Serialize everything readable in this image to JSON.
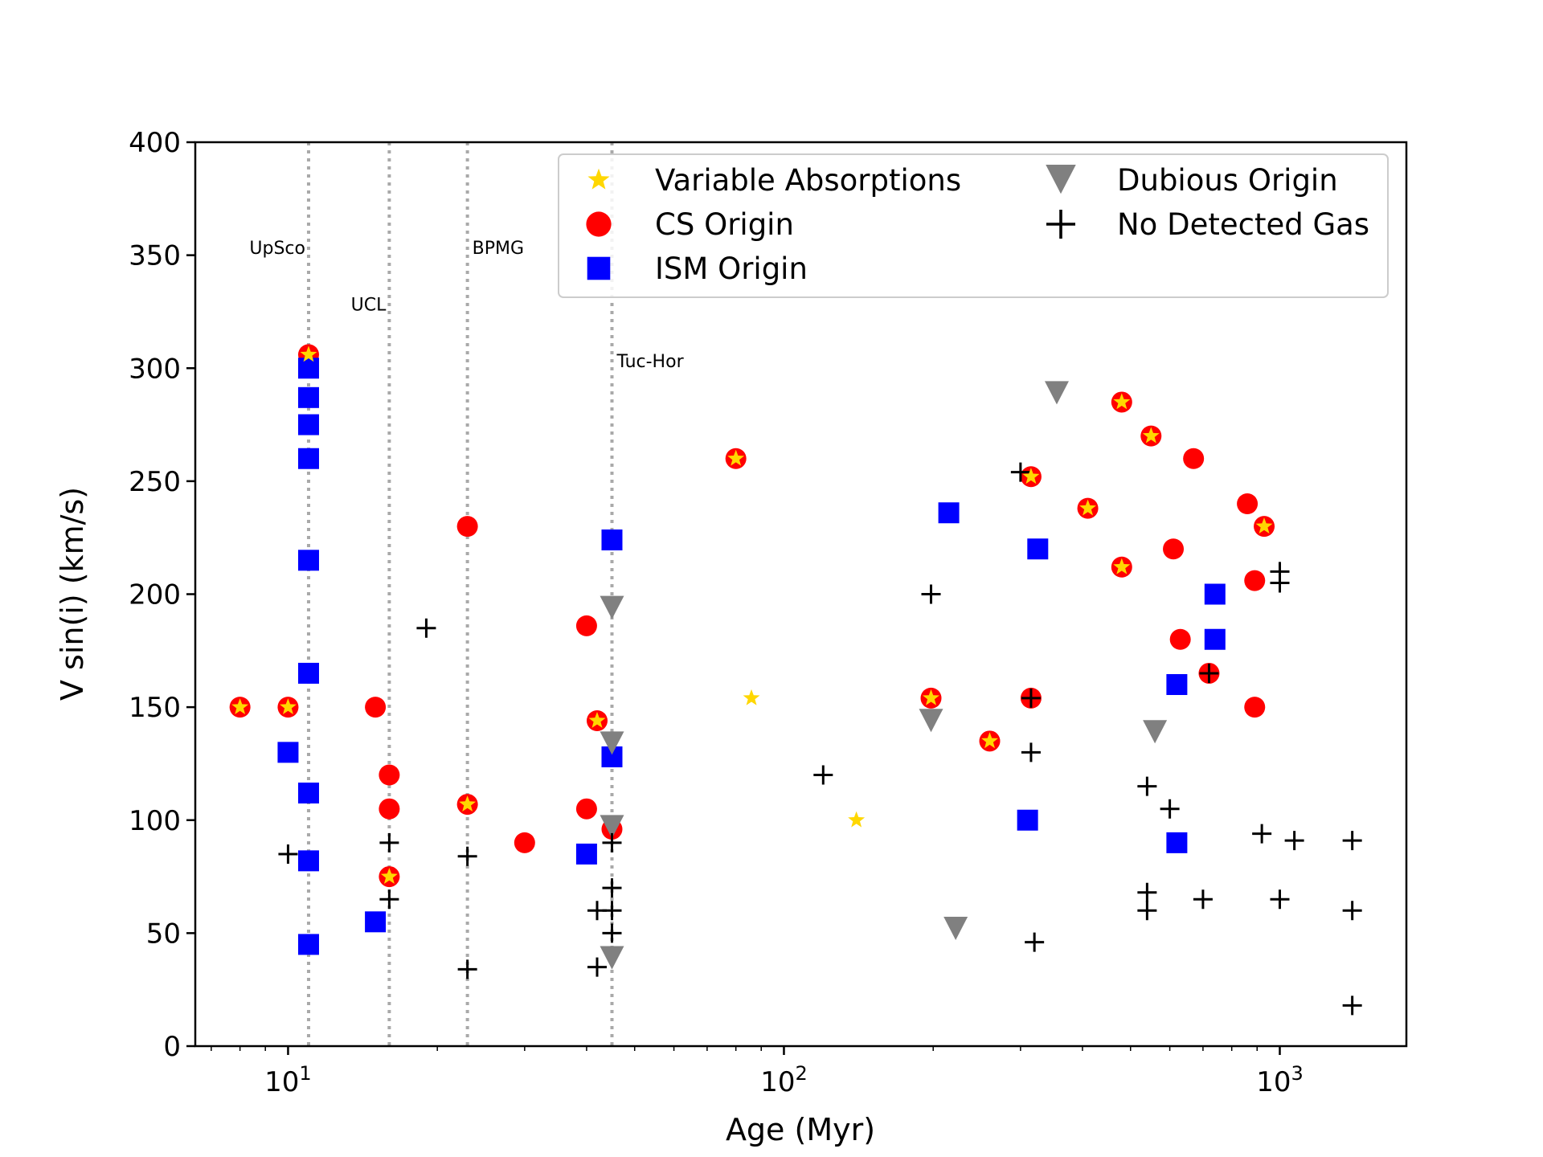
{
  "chart_data": {
    "type": "scatter",
    "title": "",
    "xlabel": "Age (Myr)",
    "ylabel": "V sin(i) (km/s)",
    "xscale": "log",
    "xlim": [
      6.5,
      1800
    ],
    "ylim": [
      0,
      400
    ],
    "grid": false,
    "legend_position": "top-right",
    "y_ticks": [
      0,
      50,
      100,
      150,
      200,
      250,
      300,
      350,
      400
    ],
    "x_ticks": [
      {
        "value": 10,
        "base": "10",
        "exp": "1"
      },
      {
        "value": 100,
        "base": "10",
        "exp": "2"
      },
      {
        "value": 1000,
        "base": "10",
        "exp": "3"
      }
    ],
    "reference_lines": [
      {
        "label": "UpSco",
        "x": 11,
        "label_y": 353,
        "label_side": "left"
      },
      {
        "label": "UCL",
        "x": 16,
        "label_y": 328,
        "label_side": "left"
      },
      {
        "label": "BPMG",
        "x": 23,
        "label_y": 353,
        "label_side": "right"
      },
      {
        "label": "Tuc-Hor",
        "x": 45,
        "label_y": 303,
        "label_side": "right"
      }
    ],
    "legend": [
      {
        "key": "variable",
        "label": "Variable Absorptions"
      },
      {
        "key": "dubious",
        "label": "Dubious Origin"
      },
      {
        "key": "cs",
        "label": "CS Origin"
      },
      {
        "key": "none",
        "label": "No Detected Gas"
      },
      {
        "key": "ism",
        "label": "ISM Origin"
      }
    ],
    "series": [
      {
        "name": "CS Origin",
        "key": "cs",
        "marker": "circle",
        "color": "#ff0000",
        "points": [
          [
            8,
            150
          ],
          [
            10,
            150
          ],
          [
            11,
            306
          ],
          [
            15,
            150
          ],
          [
            16,
            120
          ],
          [
            16,
            105
          ],
          [
            16,
            75
          ],
          [
            23,
            230
          ],
          [
            23,
            107
          ],
          [
            30,
            90
          ],
          [
            40,
            186
          ],
          [
            40,
            105
          ],
          [
            42,
            144
          ],
          [
            45,
            96
          ],
          [
            80,
            260
          ],
          [
            198,
            154
          ],
          [
            260,
            135
          ],
          [
            315,
            252
          ],
          [
            315,
            154
          ],
          [
            410,
            238
          ],
          [
            480,
            285
          ],
          [
            480,
            212
          ],
          [
            550,
            270
          ],
          [
            610,
            220
          ],
          [
            630,
            180
          ],
          [
            670,
            260
          ],
          [
            720,
            165
          ],
          [
            860,
            240
          ],
          [
            890,
            206
          ],
          [
            890,
            150
          ],
          [
            930,
            230
          ]
        ]
      },
      {
        "name": "ISM Origin",
        "key": "ism",
        "marker": "square",
        "color": "#0000ff",
        "points": [
          [
            10,
            130
          ],
          [
            11,
            300
          ],
          [
            11,
            287
          ],
          [
            11,
            275
          ],
          [
            11,
            260
          ],
          [
            11,
            215
          ],
          [
            11,
            165
          ],
          [
            11,
            112
          ],
          [
            11,
            82
          ],
          [
            11,
            45
          ],
          [
            15,
            55
          ],
          [
            40,
            85
          ],
          [
            45,
            224
          ],
          [
            45,
            128
          ],
          [
            215,
            236
          ],
          [
            310,
            100
          ],
          [
            325,
            220
          ],
          [
            620,
            160
          ],
          [
            620,
            90
          ],
          [
            740,
            200
          ],
          [
            740,
            180
          ]
        ]
      },
      {
        "name": "Dubious Origin",
        "key": "dubious",
        "marker": "triangle-down",
        "color": "#808080",
        "points": [
          [
            45,
            195
          ],
          [
            45,
            135
          ],
          [
            45,
            98
          ],
          [
            45,
            40
          ],
          [
            198,
            145
          ],
          [
            222,
            53
          ],
          [
            355,
            290
          ],
          [
            560,
            140
          ]
        ]
      },
      {
        "name": "No Detected Gas",
        "key": "none",
        "marker": "plus",
        "color": "#000000",
        "points": [
          [
            10,
            85
          ],
          [
            16,
            90
          ],
          [
            16,
            65
          ],
          [
            19,
            185
          ],
          [
            23,
            84
          ],
          [
            23,
            34
          ],
          [
            42,
            60
          ],
          [
            42,
            35
          ],
          [
            45,
            90
          ],
          [
            45,
            70
          ],
          [
            45,
            60
          ],
          [
            45,
            50
          ],
          [
            120,
            120
          ],
          [
            198,
            200
          ],
          [
            300,
            254
          ],
          [
            315,
            130
          ],
          [
            315,
            154
          ],
          [
            320,
            46
          ],
          [
            540,
            115
          ],
          [
            540,
            68
          ],
          [
            540,
            60
          ],
          [
            600,
            105
          ],
          [
            700,
            65
          ],
          [
            720,
            165
          ],
          [
            920,
            94
          ],
          [
            1000,
            210
          ],
          [
            1000,
            205
          ],
          [
            1000,
            65
          ],
          [
            1070,
            91
          ],
          [
            1400,
            91
          ],
          [
            1400,
            60
          ],
          [
            1400,
            18
          ]
        ]
      },
      {
        "name": "Variable Absorptions",
        "key": "variable",
        "marker": "star",
        "color": "#ffd700",
        "points": [
          [
            8,
            150
          ],
          [
            10,
            150
          ],
          [
            11,
            306
          ],
          [
            16,
            75
          ],
          [
            23,
            107
          ],
          [
            42,
            144
          ],
          [
            80,
            260
          ],
          [
            86,
            154
          ],
          [
            140,
            100
          ],
          [
            198,
            154
          ],
          [
            260,
            135
          ],
          [
            315,
            252
          ],
          [
            410,
            238
          ],
          [
            480,
            285
          ],
          [
            480,
            212
          ],
          [
            550,
            270
          ],
          [
            930,
            230
          ]
        ]
      }
    ]
  }
}
